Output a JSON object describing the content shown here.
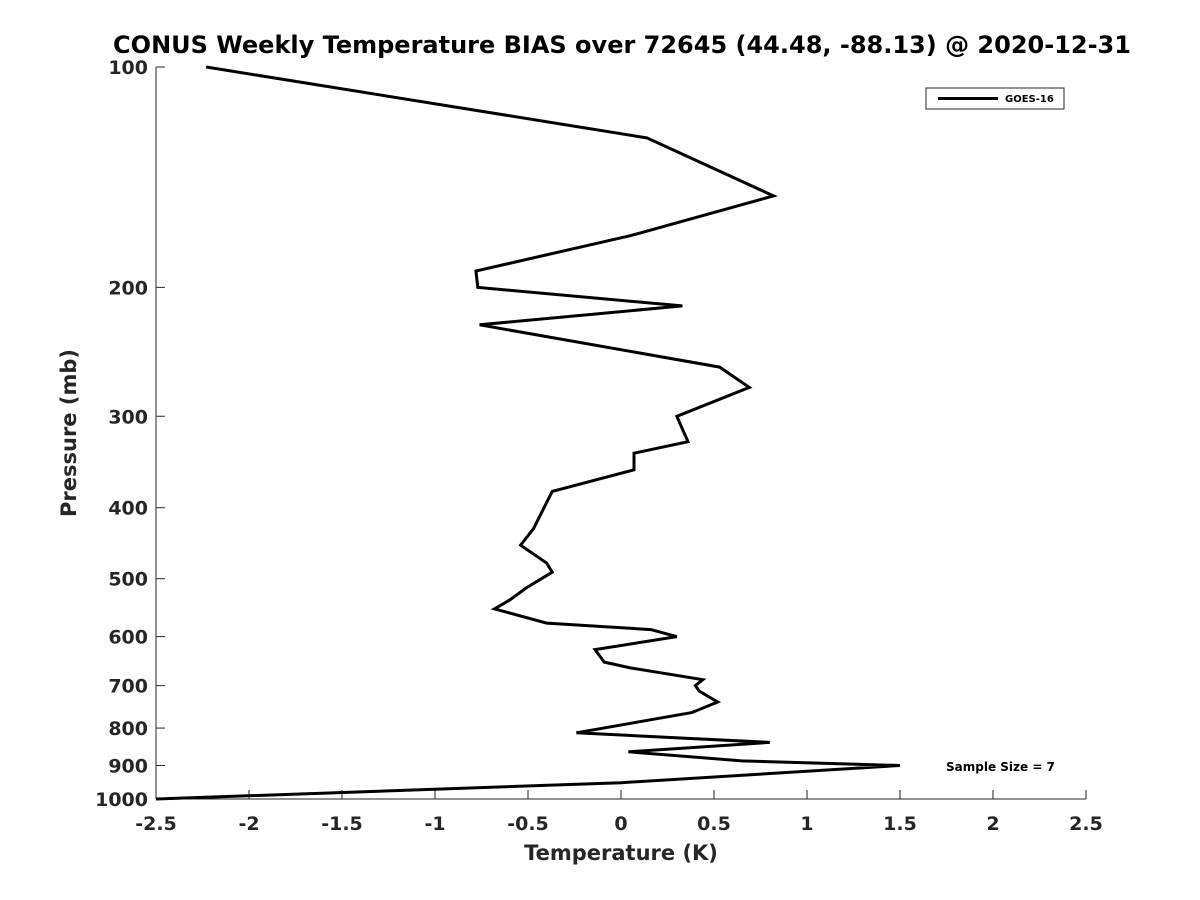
{
  "chart_data": {
    "type": "line",
    "title": "CONUS Weekly Temperature BIAS over 72645 (44.48, -88.13) @ 2020-12-31",
    "xlabel": "Temperature (K)",
    "ylabel": "Pressure (mb)",
    "xlim": [
      -2.5,
      2.5
    ],
    "ylim": [
      100,
      1000
    ],
    "y_scale": "log",
    "y_reversed": true,
    "grid": false,
    "x_ticks": [
      "-2.5",
      "-2",
      "-1.5",
      "-1",
      "-0.5",
      "0",
      "0.5",
      "1",
      "1.5",
      "2",
      "2.5"
    ],
    "y_ticks": [
      "100",
      "200",
      "300",
      "400",
      "500",
      "600",
      "700",
      "800",
      "900",
      "1000"
    ],
    "legend": {
      "position": "top-right",
      "entries": [
        "GOES-16"
      ]
    },
    "annotation": "Sample Size = 7",
    "series": [
      {
        "name": "GOES-16",
        "color": "#000000",
        "points": [
          [
            -2.23,
            100
          ],
          [
            0.14,
            125
          ],
          [
            0.82,
            150
          ],
          [
            0.05,
            170
          ],
          [
            -0.78,
            190
          ],
          [
            -0.77,
            200
          ],
          [
            0.33,
            212
          ],
          [
            -0.76,
            225
          ],
          [
            0.53,
            257
          ],
          [
            0.69,
            274
          ],
          [
            0.3,
            300
          ],
          [
            0.36,
            325
          ],
          [
            0.07,
            337
          ],
          [
            0.07,
            355
          ],
          [
            -0.37,
            380
          ],
          [
            -0.47,
            427
          ],
          [
            -0.54,
            450
          ],
          [
            -0.4,
            476
          ],
          [
            -0.37,
            490
          ],
          [
            -0.51,
            515
          ],
          [
            -0.6,
            535
          ],
          [
            -0.68,
            550
          ],
          [
            -0.4,
            575
          ],
          [
            0.16,
            587
          ],
          [
            0.3,
            600
          ],
          [
            -0.14,
            625
          ],
          [
            -0.09,
            650
          ],
          [
            0.05,
            662
          ],
          [
            0.44,
            687
          ],
          [
            0.4,
            700
          ],
          [
            0.42,
            712
          ],
          [
            0.52,
            737
          ],
          [
            0.38,
            762
          ],
          [
            -0.24,
            812
          ],
          [
            0.8,
            837
          ],
          [
            0.04,
            862
          ],
          [
            0.65,
            887
          ],
          [
            1.5,
            900
          ],
          [
            0.0,
            950
          ],
          [
            -2.5,
            1000
          ]
        ]
      }
    ]
  }
}
